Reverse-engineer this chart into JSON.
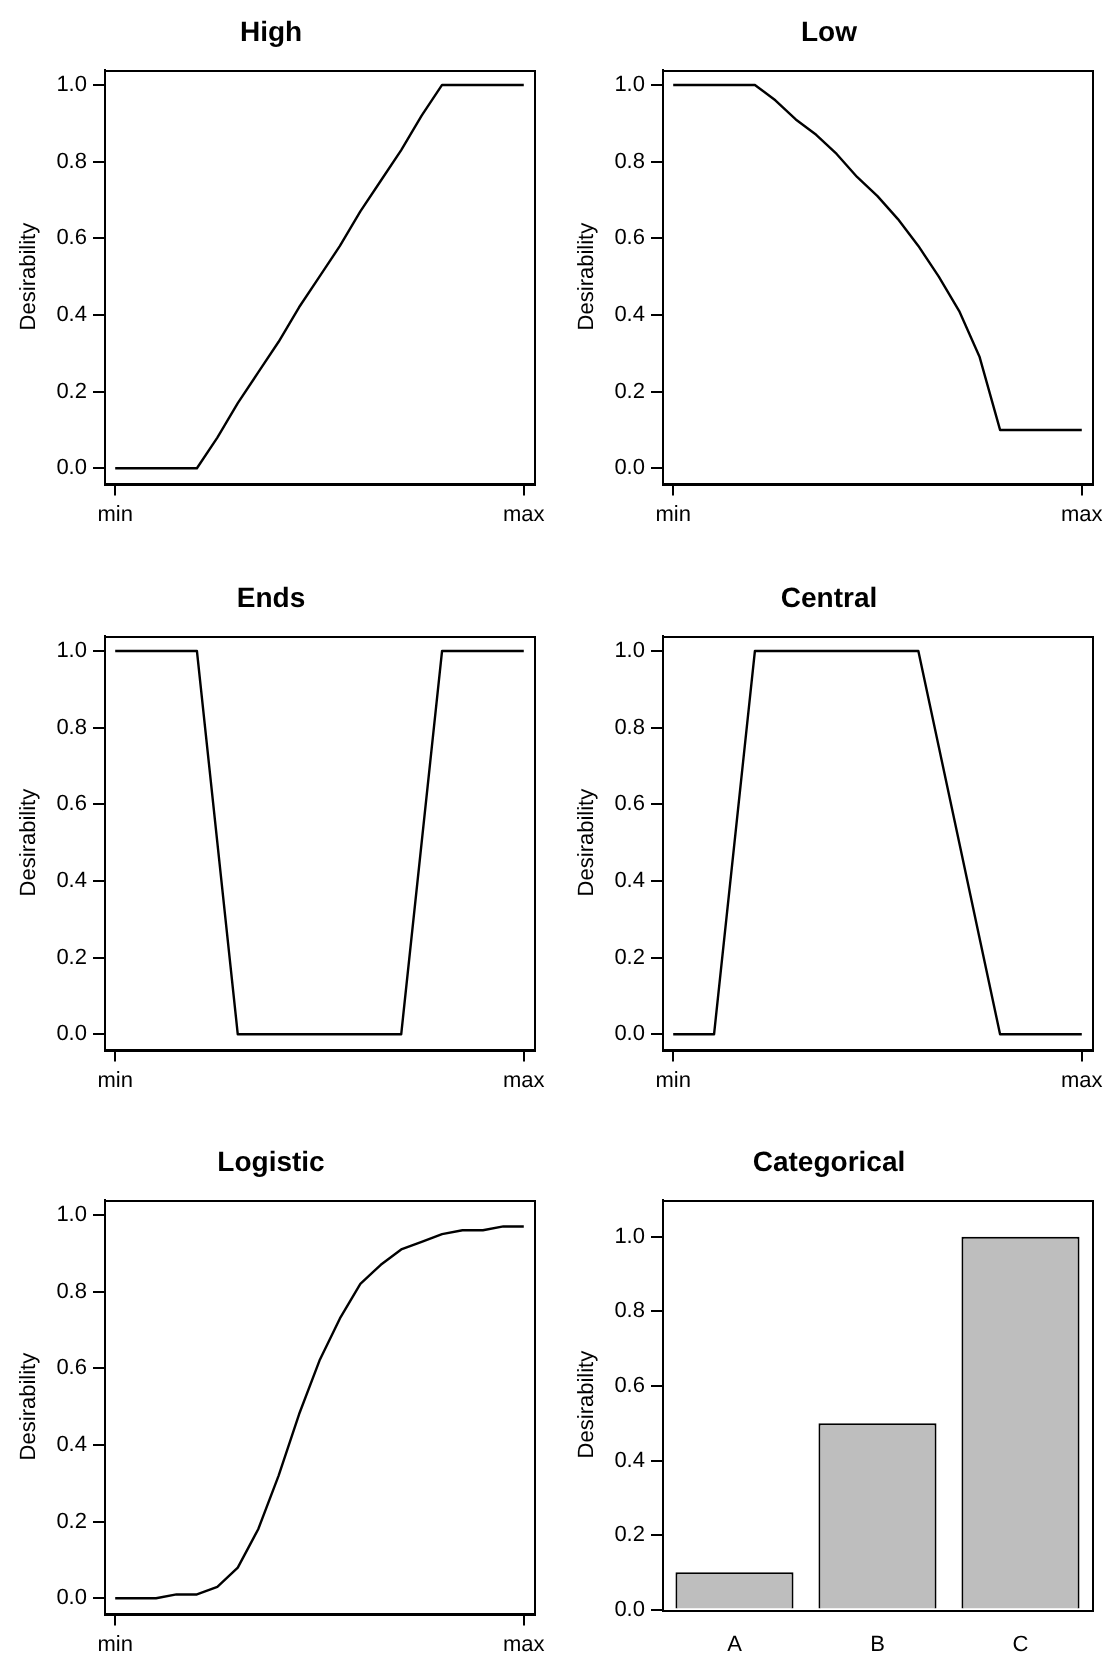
{
  "chart_data": [
    {
      "type": "line",
      "title": "High",
      "ylabel": "Desirability",
      "color": "#000000",
      "categories": [
        "min",
        null,
        null,
        null,
        null,
        null,
        null,
        null,
        null,
        null,
        null,
        null,
        null,
        null,
        null,
        null,
        null,
        null,
        null,
        null,
        "max"
      ],
      "values": [
        0,
        0,
        0,
        0,
        0,
        0.08,
        0.17,
        0.25,
        0.33,
        0.42,
        0.5,
        0.58,
        0.67,
        0.75,
        0.83,
        0.92,
        1,
        1,
        1,
        1,
        1
      ],
      "ylim": [
        -0.04,
        1.04
      ],
      "yticks": [
        {
          "value": 0,
          "label": "0.0"
        },
        {
          "value": 0.2,
          "label": "0.2"
        },
        {
          "value": 0.4,
          "label": "0.4"
        },
        {
          "value": 0.6,
          "label": "0.6"
        },
        {
          "value": 0.8,
          "label": "0.8"
        },
        {
          "value": 1,
          "label": "1.0"
        }
      ]
    },
    {
      "type": "line",
      "title": "Low",
      "ylabel": "Desirability",
      "color": "#000000",
      "categories": [
        "min",
        null,
        null,
        null,
        null,
        null,
        null,
        null,
        null,
        null,
        null,
        null,
        null,
        null,
        null,
        null,
        null,
        null,
        null,
        null,
        "max"
      ],
      "values": [
        1,
        1,
        1,
        1,
        1,
        0.96,
        0.91,
        0.87,
        0.82,
        0.76,
        0.71,
        0.65,
        0.58,
        0.5,
        0.41,
        0.29,
        0.1,
        0.1,
        0.1,
        0.1,
        0.1
      ],
      "ylim": [
        -0.04,
        1.04
      ],
      "yticks": [
        {
          "value": 0,
          "label": "0.0"
        },
        {
          "value": 0.2,
          "label": "0.2"
        },
        {
          "value": 0.4,
          "label": "0.4"
        },
        {
          "value": 0.6,
          "label": "0.6"
        },
        {
          "value": 0.8,
          "label": "0.8"
        },
        {
          "value": 1,
          "label": "1.0"
        }
      ]
    },
    {
      "type": "line",
      "title": "Ends",
      "ylabel": "Desirability",
      "color": "#000000",
      "categories": [
        "min",
        null,
        null,
        null,
        null,
        null,
        null,
        null,
        null,
        null,
        null,
        null,
        null,
        null,
        null,
        null,
        null,
        null,
        null,
        null,
        "max"
      ],
      "values": [
        1,
        1,
        1,
        1,
        1,
        0.5,
        0,
        0,
        0,
        0,
        0,
        0,
        0,
        0,
        0,
        0.5,
        1,
        1,
        1,
        1,
        1
      ],
      "ylim": [
        -0.04,
        1.04
      ],
      "yticks": [
        {
          "value": 0,
          "label": "0.0"
        },
        {
          "value": 0.2,
          "label": "0.2"
        },
        {
          "value": 0.4,
          "label": "0.4"
        },
        {
          "value": 0.6,
          "label": "0.6"
        },
        {
          "value": 0.8,
          "label": "0.8"
        },
        {
          "value": 1,
          "label": "1.0"
        }
      ]
    },
    {
      "type": "line",
      "title": "Central",
      "ylabel": "Desirability",
      "color": "#000000",
      "categories": [
        "min",
        null,
        null,
        null,
        null,
        null,
        null,
        null,
        null,
        null,
        null,
        null,
        null,
        null,
        null,
        null,
        null,
        null,
        null,
        null,
        "max"
      ],
      "values": [
        0,
        0,
        0,
        0.5,
        1,
        1,
        1,
        1,
        1,
        1,
        1,
        1,
        1,
        0.75,
        0.5,
        0.25,
        0,
        0,
        0,
        0,
        0
      ],
      "ylim": [
        -0.04,
        1.04
      ],
      "yticks": [
        {
          "value": 0,
          "label": "0.0"
        },
        {
          "value": 0.2,
          "label": "0.2"
        },
        {
          "value": 0.4,
          "label": "0.4"
        },
        {
          "value": 0.6,
          "label": "0.6"
        },
        {
          "value": 0.8,
          "label": "0.8"
        },
        {
          "value": 1,
          "label": "1.0"
        }
      ]
    },
    {
      "type": "line",
      "title": "Logistic",
      "ylabel": "Desirability",
      "color": "#000000",
      "categories": [
        "min",
        null,
        null,
        null,
        null,
        null,
        null,
        null,
        null,
        null,
        null,
        null,
        null,
        null,
        null,
        null,
        null,
        null,
        null,
        null,
        "max"
      ],
      "values": [
        0,
        0,
        0,
        0.01,
        0.01,
        0.03,
        0.08,
        0.18,
        0.32,
        0.48,
        0.62,
        0.73,
        0.82,
        0.87,
        0.91,
        0.93,
        0.95,
        0.96,
        0.96,
        0.97,
        0.97
      ],
      "ylim": [
        -0.04,
        1.04
      ],
      "yticks": [
        {
          "value": 0,
          "label": "0.0"
        },
        {
          "value": 0.2,
          "label": "0.2"
        },
        {
          "value": 0.4,
          "label": "0.4"
        },
        {
          "value": 0.6,
          "label": "0.6"
        },
        {
          "value": 0.8,
          "label": "0.8"
        },
        {
          "value": 1,
          "label": "1.0"
        }
      ]
    },
    {
      "type": "bar",
      "title": "Categorical",
      "ylabel": "Desirability",
      "color": "#bebebe",
      "categories": [
        "A",
        "B",
        "C"
      ],
      "values": [
        0.1,
        0.5,
        1
      ],
      "ylim": [
        0,
        1.1
      ],
      "yticks": [
        {
          "value": 0,
          "label": "0.0"
        },
        {
          "value": 0.2,
          "label": "0.2"
        },
        {
          "value": 0.4,
          "label": "0.4"
        },
        {
          "value": 0.6,
          "label": "0.6"
        },
        {
          "value": 0.8,
          "label": "0.8"
        },
        {
          "value": 1,
          "label": "1.0"
        }
      ]
    }
  ]
}
